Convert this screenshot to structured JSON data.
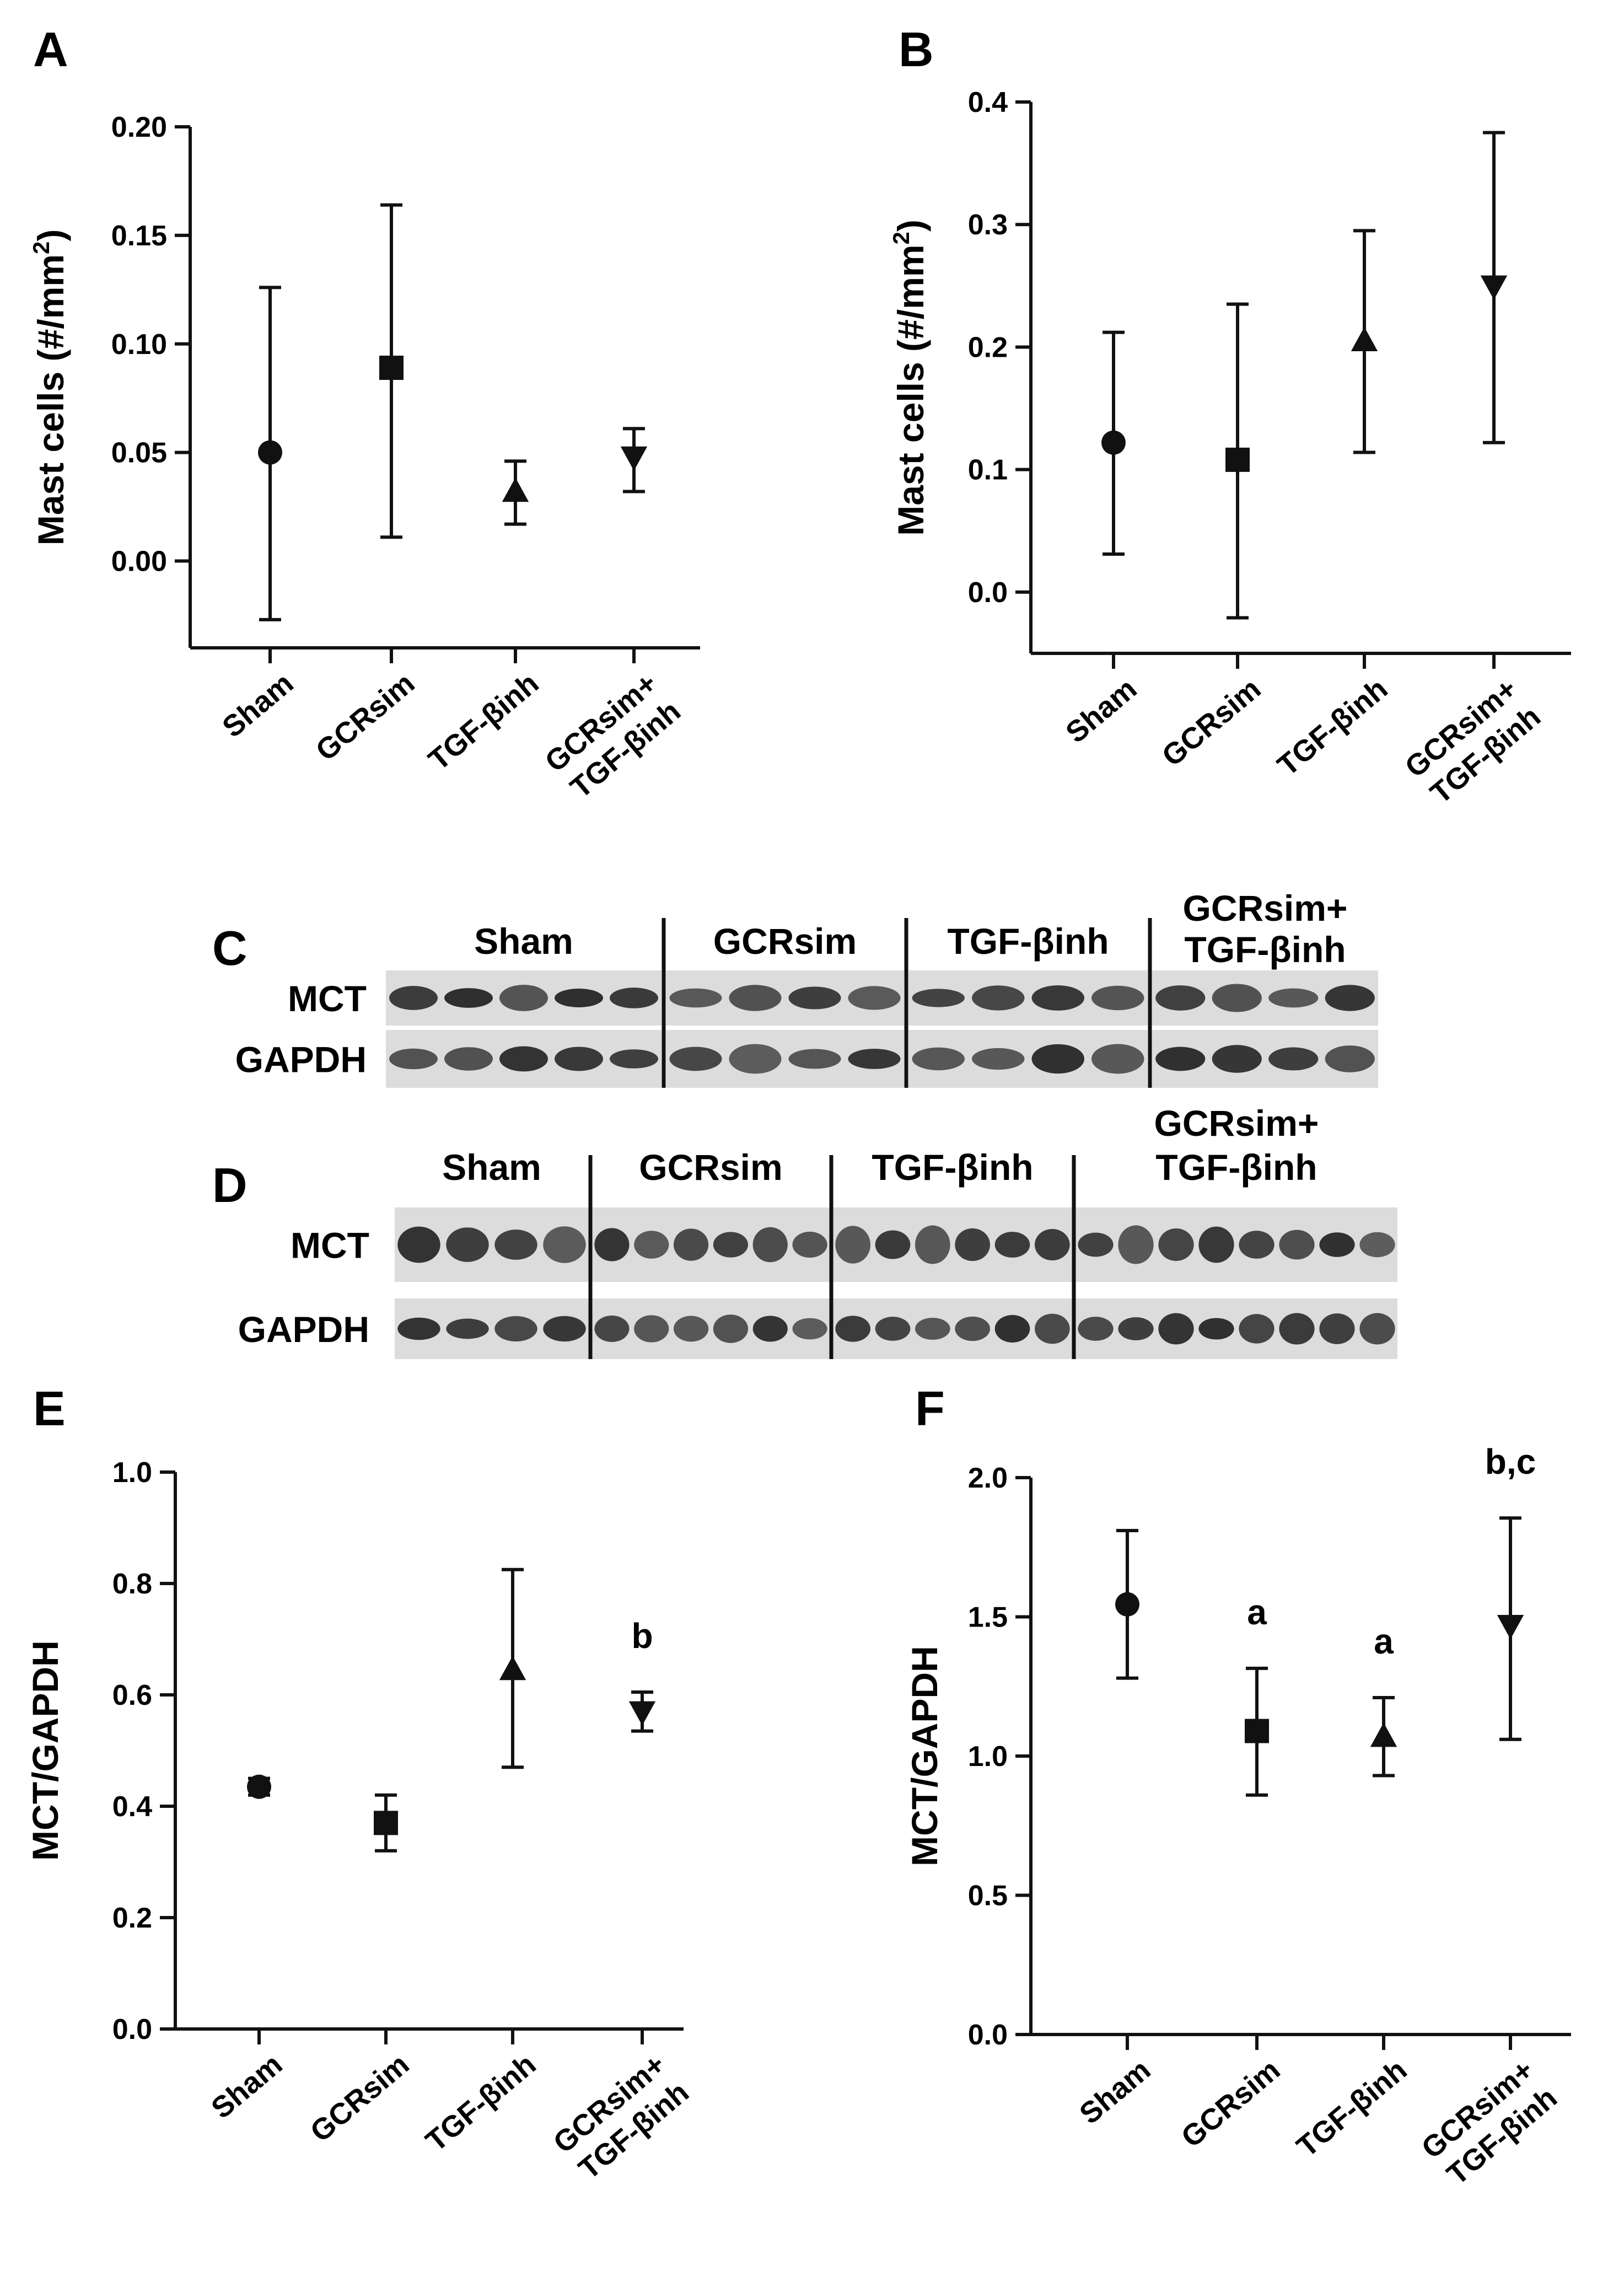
{
  "figure": {
    "panels": {
      "A": "A",
      "B": "B",
      "C": "C",
      "D": "D",
      "E": "E",
      "F": "F"
    }
  },
  "chart_data": [
    {
      "id": "A",
      "type": "scatter",
      "ylabel_main": "Mast cells (#/mm",
      "ylabel_sup": "2",
      "ylabel_end": ")",
      "categories": [
        [
          "Sham"
        ],
        [
          "GCRsim"
        ],
        [
          "TGF-βinh"
        ],
        [
          "GCRsim+",
          "TGF-βinh"
        ]
      ],
      "ylim": [
        -0.04,
        0.2
      ],
      "ticks": [
        0.0,
        0.05,
        0.1,
        0.15,
        0.2
      ],
      "tick_labels": [
        "0.00",
        "0.05",
        "0.10",
        "0.15",
        "0.20"
      ],
      "markers": [
        "circle",
        "square",
        "triangle-up",
        "triangle-down"
      ],
      "series": [
        {
          "values": [
            0.05,
            0.089,
            0.032,
            0.048
          ],
          "err_low": [
            -0.027,
            0.011,
            0.017,
            0.032
          ],
          "err_high": [
            0.126,
            0.164,
            0.046,
            0.061
          ]
        }
      ],
      "annotations": [
        "",
        "",
        "",
        ""
      ]
    },
    {
      "id": "B",
      "type": "scatter",
      "ylabel_main": "Mast cells (#/mm",
      "ylabel_sup": "2",
      "ylabel_end": ")",
      "categories": [
        [
          "Sham"
        ],
        [
          "GCRsim"
        ],
        [
          "TGF-βinh"
        ],
        [
          "GCRsim+",
          "TGF-βinh"
        ]
      ],
      "ylim": [
        -0.05,
        0.4
      ],
      "ticks": [
        0.0,
        0.1,
        0.2,
        0.3,
        0.4
      ],
      "tick_labels": [
        "0.0",
        "0.1",
        "0.2",
        "0.3",
        "0.4"
      ],
      "markers": [
        "circle",
        "square",
        "triangle-up",
        "triangle-down"
      ],
      "series": [
        {
          "values": [
            0.122,
            0.108,
            0.205,
            0.25
          ],
          "err_low": [
            0.031,
            -0.021,
            0.114,
            0.122
          ],
          "err_high": [
            0.212,
            0.235,
            0.295,
            0.375
          ]
        }
      ],
      "annotations": [
        "",
        "",
        "",
        ""
      ]
    },
    {
      "id": "E",
      "type": "scatter",
      "ylabel_main": "MCT/GAPDH",
      "ylabel_sup": "",
      "ylabel_end": "",
      "categories": [
        [
          "Sham"
        ],
        [
          "GCRsim"
        ],
        [
          "TGF-βinh"
        ],
        [
          "GCRsim+",
          "TGF-βinh"
        ]
      ],
      "ylim": [
        0,
        1.0
      ],
      "ticks": [
        0.0,
        0.2,
        0.4,
        0.6,
        0.8,
        1.0
      ],
      "tick_labels": [
        "0.0",
        "0.2",
        "0.4",
        "0.6",
        "0.8",
        "1.0"
      ],
      "markers": [
        "circle",
        "square",
        "triangle-up",
        "triangle-down"
      ],
      "series": [
        {
          "values": [
            0.435,
            0.37,
            0.645,
            0.57
          ],
          "err_low": [
            0.42,
            0.32,
            0.47,
            0.535
          ],
          "err_high": [
            0.45,
            0.42,
            0.825,
            0.605
          ]
        }
      ],
      "annotations": [
        "",
        "",
        "",
        "b"
      ]
    },
    {
      "id": "F",
      "type": "scatter",
      "ylabel_main": "MCT/GAPDH",
      "ylabel_sup": "",
      "ylabel_end": "",
      "categories": [
        [
          "Sham"
        ],
        [
          "GCRsim"
        ],
        [
          "TGF-βinh"
        ],
        [
          "GCRsim+",
          "TGF-βinh"
        ]
      ],
      "ylim": [
        0,
        2.0
      ],
      "ticks": [
        0.0,
        0.5,
        1.0,
        1.5,
        2.0
      ],
      "tick_labels": [
        "0.0",
        "0.5",
        "1.0",
        "1.5",
        "2.0"
      ],
      "markers": [
        "circle",
        "square",
        "triangle-up",
        "triangle-down"
      ],
      "series": [
        {
          "values": [
            1.545,
            1.09,
            1.07,
            1.47
          ],
          "err_low": [
            1.28,
            0.86,
            0.93,
            1.06
          ],
          "err_high": [
            1.81,
            1.315,
            1.21,
            1.855
          ]
        }
      ],
      "annotations": [
        "",
        "a",
        "a",
        "b,c"
      ]
    }
  ],
  "blots": [
    {
      "id": "C",
      "groups": [
        [
          "Sham"
        ],
        [
          "GCRsim"
        ],
        [
          "TGF-βinh"
        ],
        [
          "GCRsim+",
          "TGF-βinh"
        ]
      ],
      "rows": [
        "MCT",
        "GAPDH"
      ],
      "lanes_per_group": [
        5,
        4,
        4,
        4
      ]
    },
    {
      "id": "D",
      "groups": [
        [
          "Sham"
        ],
        [
          "GCRsim"
        ],
        [
          "TGF-βinh"
        ],
        [
          "GCRsim+",
          "TGF-βinh"
        ]
      ],
      "rows": [
        "MCT",
        "GAPDH"
      ],
      "lanes_per_group": [
        4,
        6,
        6,
        8
      ]
    }
  ]
}
